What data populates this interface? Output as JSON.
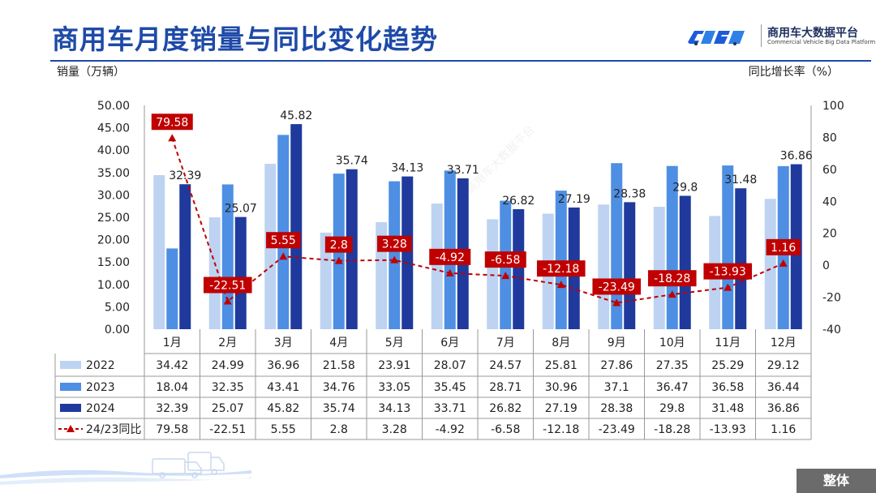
{
  "title": "商用车月度销量与同比变化趋势",
  "logo": {
    "cn": "商用车大数据平台",
    "en": "Commercial Vehicle Big Data Platform"
  },
  "left_axis_title": "销量（万辆）",
  "right_axis_title": "同比增长率（%）",
  "bottom_tag": "整体",
  "watermark": "商用车大数据平台",
  "colors": {
    "s2022": "#bdd3f1",
    "s2023": "#4e8fe3",
    "s2024": "#1f3a9c",
    "yoy": "#c00000"
  },
  "chart_data": {
    "type": "bar",
    "categories": [
      "1月",
      "2月",
      "3月",
      "4月",
      "5月",
      "6月",
      "7月",
      "8月",
      "9月",
      "10月",
      "11月",
      "12月"
    ],
    "ylim": [
      0,
      50
    ],
    "yticks": [
      "0.00",
      "5.00",
      "10.00",
      "15.00",
      "20.00",
      "25.00",
      "30.00",
      "35.00",
      "40.00",
      "45.00",
      "50.00"
    ],
    "y2lim": [
      -40,
      100
    ],
    "y2ticks": [
      "-40",
      "-20",
      "0",
      "20",
      "40",
      "60",
      "80",
      "100"
    ],
    "series": [
      {
        "name": "2022",
        "values": [
          34.42,
          24.99,
          36.96,
          21.58,
          23.91,
          28.07,
          24.57,
          25.81,
          27.86,
          27.35,
          25.29,
          29.12
        ],
        "labels": [
          "34.42",
          "24.99",
          "36.96",
          "21.58",
          "23.91",
          "28.07",
          "24.57",
          "25.81",
          "27.86",
          "27.35",
          "25.29",
          "29.12"
        ]
      },
      {
        "name": "2023",
        "values": [
          18.04,
          32.35,
          43.41,
          34.76,
          33.05,
          35.45,
          28.71,
          30.96,
          37.1,
          36.47,
          36.58,
          36.44
        ],
        "labels": [
          "18.04",
          "32.35",
          "43.41",
          "34.76",
          "33.05",
          "35.45",
          "28.71",
          "30.96",
          "37.1",
          "36.47",
          "36.58",
          "36.44"
        ]
      },
      {
        "name": "2024",
        "values": [
          32.39,
          25.07,
          45.82,
          35.74,
          34.13,
          33.71,
          26.82,
          27.19,
          28.38,
          29.8,
          31.48,
          36.86
        ],
        "labels": [
          "32.39",
          "25.07",
          "45.82",
          "35.74",
          "34.13",
          "33.71",
          "26.82",
          "27.19",
          "28.38",
          "29.8",
          "31.48",
          "36.86"
        ]
      }
    ],
    "yoy": {
      "name": "24/23同比",
      "values": [
        79.58,
        -22.51,
        5.55,
        2.8,
        3.28,
        -4.92,
        -6.58,
        -12.18,
        -23.49,
        -18.28,
        -13.93,
        1.16
      ],
      "labels": [
        "79.58",
        "-22.51",
        "5.55",
        "2.8",
        "3.28",
        "-4.92",
        "-6.58",
        "-12.18",
        "-23.49",
        "-18.28",
        "-13.93",
        "1.16"
      ]
    }
  }
}
